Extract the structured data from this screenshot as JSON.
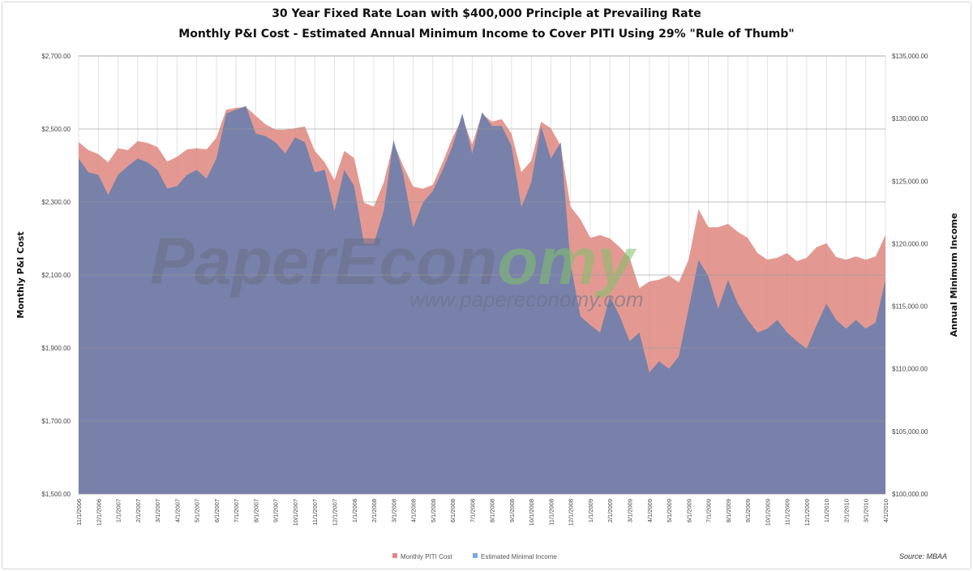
{
  "chart_data": {
    "type": "area",
    "title": "30 Year Fixed Rate Loan with $400,000 Principle at Prevailing Rate",
    "subtitle": "Monthly P&I Cost - Estimated Annual Minimum Income to Cover PITI Using 29% \"Rule of Thumb\"",
    "ylabel": "Monthly P&I Cost",
    "y2label": "Annual Minimum Income",
    "ylim": [
      1500,
      2700
    ],
    "y2lim": [
      100000,
      135000
    ],
    "yticks": [
      "$1,500.00",
      "$1,700.00",
      "$1,900.00",
      "$2,100.00",
      "$2,300.00",
      "$2,500.00",
      "$2,700.00"
    ],
    "y2ticks": [
      "$100,000.00",
      "$105,000.00",
      "$110,000.00",
      "$115,000.00",
      "$120,000.00",
      "$125,000.00",
      "$130,000.00",
      "$135,000.00"
    ],
    "xticks": [
      "11/1/2006",
      "12/1/2006",
      "1/1/2007",
      "2/1/2007",
      "3/1/2007",
      "4/1/2007",
      "5/1/2007",
      "6/1/2007",
      "7/1/2007",
      "8/1/2007",
      "9/1/2007",
      "10/1/2007",
      "11/1/2007",
      "12/1/2007",
      "1/1/2008",
      "2/1/2008",
      "3/1/2008",
      "4/1/2008",
      "5/1/2008",
      "6/1/2008",
      "7/1/2008",
      "8/1/2008",
      "9/1/2008",
      "10/1/2008",
      "11/1/2008",
      "12/1/2008",
      "1/1/2009",
      "2/1/2009",
      "3/1/2009",
      "4/1/2009",
      "5/1/2009",
      "6/1/2009",
      "7/1/2009",
      "8/1/2009",
      "9/1/2009",
      "10/1/2009",
      "11/1/2009",
      "12/1/2009",
      "1/1/2010",
      "2/1/2010",
      "3/1/2010",
      "4/1/2010"
    ],
    "x_start": "11/1/2006",
    "x_step": "semi-monthly (1st and 15th)",
    "grid": "vertical gridlines per month, horizontal at major ticks",
    "legend_position": "bottom",
    "source": "Source: MBAA",
    "series": [
      {
        "name": "Monthly PITI Cost",
        "axis": "left",
        "color": "#e08e86",
        "values": [
          2464,
          2442,
          2431,
          2409,
          2447,
          2442,
          2467,
          2462,
          2451,
          2411,
          2424,
          2444,
          2447,
          2444,
          2476,
          2553,
          2558,
          2560,
          2536,
          2513,
          2498,
          2498,
          2502,
          2507,
          2440,
          2409,
          2360,
          2440,
          2420,
          2298,
          2287,
          2353,
          2462,
          2398,
          2342,
          2336,
          2347,
          2409,
          2476,
          2531,
          2458,
          2542,
          2520,
          2527,
          2487,
          2382,
          2413,
          2520,
          2502,
          2453,
          2287,
          2253,
          2202,
          2209,
          2200,
          2176,
          2147,
          2064,
          2082,
          2087,
          2098,
          2080,
          2142,
          2280,
          2231,
          2231,
          2240,
          2218,
          2202,
          2160,
          2142,
          2147,
          2160,
          2138,
          2147,
          2176,
          2187,
          2149,
          2142,
          2151,
          2142,
          2151,
          2209
        ]
      },
      {
        "name": "Estimated Minimal Income",
        "axis": "right",
        "color": "#7580aa",
        "values": [
          126800,
          125700,
          125500,
          123900,
          125500,
          126200,
          126800,
          126500,
          125900,
          124400,
          124600,
          125500,
          125900,
          125200,
          126800,
          130400,
          130700,
          131000,
          128800,
          128600,
          128100,
          127200,
          128500,
          128100,
          125700,
          125900,
          122600,
          125900,
          124600,
          120000,
          120000,
          122600,
          128300,
          125500,
          121300,
          123300,
          124200,
          125900,
          127800,
          130400,
          127200,
          130500,
          129400,
          129400,
          127800,
          122900,
          124900,
          129400,
          126800,
          128100,
          118400,
          114200,
          113500,
          112900,
          115800,
          114200,
          112200,
          112900,
          109700,
          110600,
          110000,
          111000,
          114800,
          118700,
          117400,
          114800,
          117100,
          115200,
          113900,
          112900,
          113200,
          113900,
          112900,
          112200,
          111600,
          113500,
          115200,
          113900,
          113200,
          113900,
          113200,
          113700,
          117100
        ]
      }
    ]
  },
  "watermark": {
    "logo_a": "Paper",
    "logo_b": "Econ",
    "logo_c": "omy",
    "url": "www.papereconomy.com"
  },
  "colors": {
    "piti": "#e08e86",
    "income": "#7580aa",
    "legend_piti": "#e3878a",
    "legend_income": "#79a9e0"
  }
}
